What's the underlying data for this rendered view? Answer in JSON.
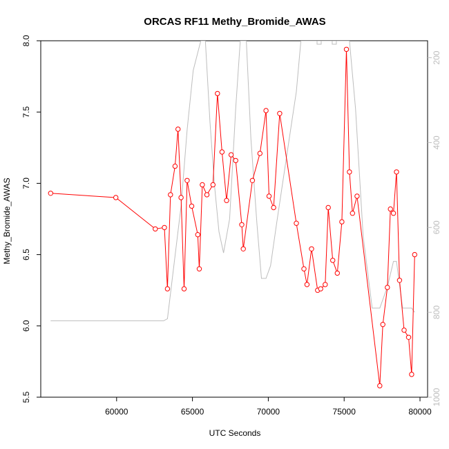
{
  "chart_data": {
    "type": "line",
    "title": "ORCAS RF11 Methy_Bromide_AWAS",
    "xlabel": "UTC Seconds",
    "ylabel": "Methy_Bromide_AWAS",
    "xlim": [
      55000,
      80500
    ],
    "ylim": [
      5.5,
      8.0
    ],
    "x_ticks": [
      "60000",
      "65000",
      "70000",
      "75000",
      "80000"
    ],
    "y_ticks": [
      "5.5",
      "6.0",
      "6.5",
      "7.0",
      "7.5",
      "8.0"
    ],
    "y2_ticks": [
      "200",
      "400",
      "600",
      "800",
      "1000"
    ],
    "y2_lim": [
      1000,
      160
    ],
    "grid": false,
    "series": [
      {
        "color": "#ff0000",
        "marker": "open-circle",
        "x": [
          55650,
          59950,
          62550,
          63150,
          63350,
          63550,
          63850,
          64050,
          64250,
          64450,
          64650,
          64950,
          65350,
          65450,
          65650,
          65950,
          66350,
          66650,
          66950,
          67250,
          67550,
          67850,
          68250,
          68350,
          68950,
          69450,
          69850,
          70050,
          70350,
          70750,
          71850,
          72350,
          72550,
          72850,
          73250,
          73450,
          73750,
          73950,
          74250,
          74550,
          74850,
          75150,
          75350,
          75550,
          75850,
          77350,
          77550,
          77850,
          78050,
          78250,
          78450,
          78650,
          78950,
          79250,
          79450,
          79650
        ],
        "y": [
          6.93,
          6.9,
          6.68,
          6.69,
          6.26,
          6.92,
          7.12,
          7.38,
          6.9,
          6.26,
          7.02,
          6.84,
          6.64,
          6.4,
          6.99,
          6.92,
          6.99,
          7.63,
          7.22,
          6.88,
          7.2,
          7.16,
          6.71,
          6.54,
          7.02,
          7.21,
          7.51,
          6.91,
          6.83,
          7.49,
          6.72,
          6.4,
          6.29,
          6.54,
          6.25,
          6.26,
          6.29,
          6.83,
          6.46,
          6.37,
          6.73,
          7.94,
          7.08,
          6.79,
          6.91,
          5.58,
          6.01,
          6.27,
          6.82,
          6.79,
          7.08,
          6.32,
          5.97,
          5.92,
          5.66,
          6.5
        ]
      },
      {
        "color": "#bdbdbd",
        "axis": "right",
        "x": [
          55650,
          58000,
          61000,
          63100,
          63350,
          64250,
          64650,
          65050,
          65550,
          65850,
          66150,
          66450,
          66750,
          67050,
          67450,
          67850,
          68150,
          68550,
          68850,
          69250,
          69550,
          69850,
          70150,
          70550,
          71050,
          71550,
          71850,
          72150,
          72450,
          72750,
          73350,
          73550,
          74350,
          74650,
          74950,
          75350,
          75750,
          76250,
          76850,
          77350,
          77850,
          78250,
          78450,
          78850,
          79450,
          79650
        ],
        "y": [
          820,
          820,
          820,
          820,
          815,
          550,
          370,
          230,
          160,
          160,
          350,
          500,
          610,
          660,
          580,
          320,
          160,
          160,
          390,
          590,
          720,
          720,
          690,
          590,
          470,
          350,
          280,
          160,
          160,
          160,
          160,
          160,
          160,
          160,
          160,
          160,
          320,
          620,
          790,
          790,
          740,
          680,
          680,
          790,
          790,
          800
        ]
      }
    ]
  }
}
